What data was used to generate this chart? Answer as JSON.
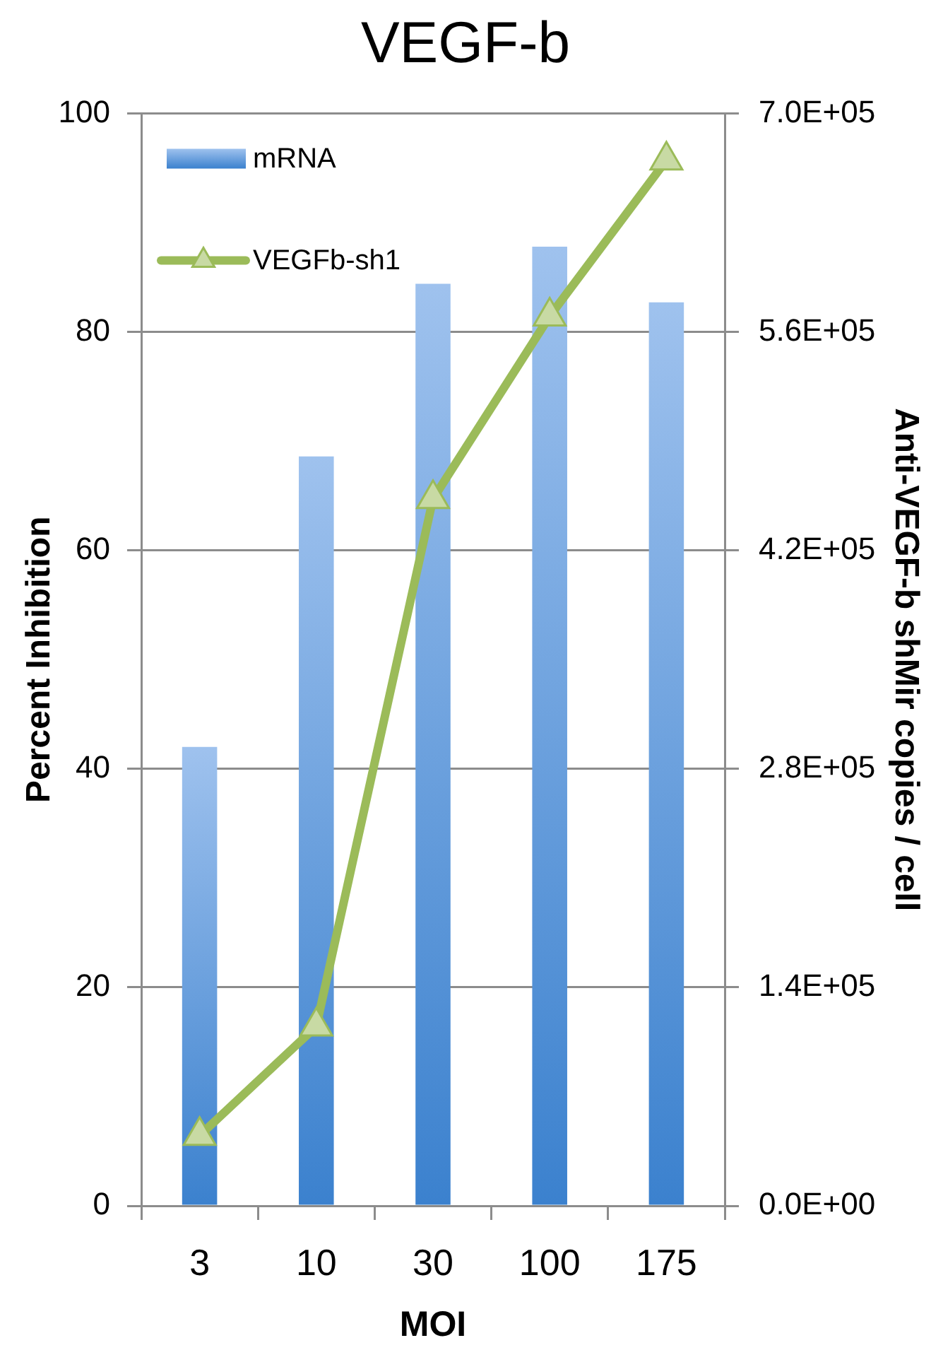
{
  "chart_data": {
    "type": "bar",
    "title": "VEGF-b",
    "xlabel": "MOI",
    "ylabel": "Percent Inhibition",
    "y2label": "Anti-VEGF-b shMir copies / cell",
    "categories": [
      "3",
      "10",
      "30",
      "100",
      "175"
    ],
    "series": [
      {
        "name": "mRNA",
        "color": "#6ca1e5",
        "values": [
          42,
          68.6,
          84.4,
          87.8,
          82.7
        ]
      },
      {
        "name": "VEGFb-sh1",
        "type": "line",
        "axis": "y2",
        "color": "#9bbb59",
        "values": [
          45000,
          115000,
          453000,
          570000,
          670000
        ]
      }
    ],
    "ylim": [
      0,
      100
    ],
    "yticks": [
      0,
      20,
      40,
      60,
      80,
      100
    ],
    "y2lim": [
      0,
      700000
    ],
    "y2ticks": [
      {
        "value": 0,
        "label": "0.0E+00"
      },
      {
        "value": 140000,
        "label": "1.4E+05"
      },
      {
        "value": 280000,
        "label": "2.8E+05"
      },
      {
        "value": 420000,
        "label": "4.2E+05"
      },
      {
        "value": 560000,
        "label": "5.6E+05"
      },
      {
        "value": 700000,
        "label": "7.0E+05"
      }
    ],
    "grid": "y",
    "legend": "top left",
    "marker": "triangle",
    "line_style": "solid"
  }
}
